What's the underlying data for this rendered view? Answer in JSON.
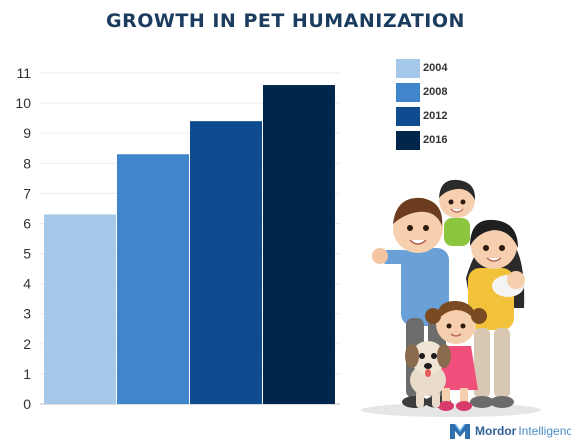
{
  "title": "GROWTH IN PET HUMANIZATION",
  "brand": {
    "name": "Mordor",
    "sub": "Intelligence",
    "logo_icon": "mordor-intelligence-logo-icon"
  },
  "chart_data": {
    "type": "bar",
    "categories": [
      "2004",
      "2008",
      "2012",
      "2016"
    ],
    "values": [
      6.3,
      8.3,
      9.4,
      10.6
    ],
    "colors": [
      "#a5c8ea",
      "#4186cd",
      "#0f4c8f",
      "#01264b"
    ],
    "ylim": [
      0,
      11
    ],
    "yticks": [
      "0",
      "1",
      "2",
      "3",
      "4",
      "5",
      "6",
      "7",
      "8",
      "9",
      "10",
      "11"
    ],
    "grid": true,
    "legend_position": "top-right",
    "title": "GROWTH IN PET HUMANIZATION",
    "xlabel": "",
    "ylabel": ""
  },
  "illustration": {
    "icon": "family-with-dog-illustration"
  }
}
